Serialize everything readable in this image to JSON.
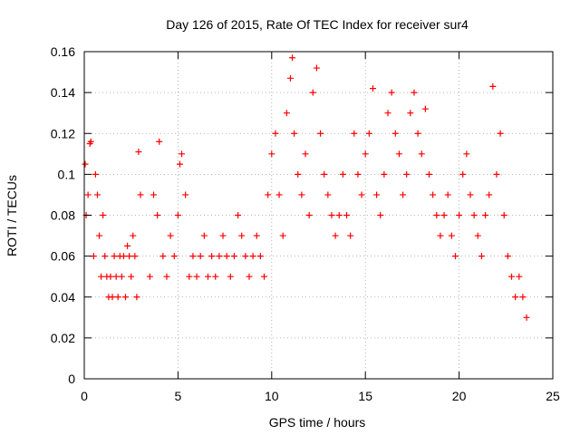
{
  "chart_data": {
    "type": "scatter",
    "title": "Day 126 of 2015, Rate Of TEC Index for receiver sur4",
    "xlabel": "GPS time / hours",
    "ylabel": "ROTI / TECUs",
    "xlim": [
      0,
      25
    ],
    "ylim": [
      0,
      0.16
    ],
    "xticks": [
      0,
      5,
      10,
      15,
      20,
      25
    ],
    "xtick_labels": [
      "0",
      "5",
      "10",
      "15",
      "20",
      "25"
    ],
    "yticks": [
      0,
      0.02,
      0.04,
      0.06,
      0.08,
      0.1,
      0.12,
      0.14,
      0.16
    ],
    "ytick_labels": [
      "0",
      "0.02",
      "0.04",
      "0.06",
      "0.08",
      "0.1",
      "0.12",
      "0.14",
      "0.16"
    ],
    "grid": true,
    "marker": "plus",
    "color": "#ff0000",
    "series": [
      {
        "values_note": "",
        "x": [
          0.05,
          0.1,
          0.2,
          0.3,
          0.35,
          0.5,
          0.6,
          0.7,
          0.8,
          0.9,
          1.0,
          1.1,
          1.2,
          1.3,
          1.4,
          1.5,
          1.6,
          1.7,
          1.8,
          1.9,
          2.0,
          2.1,
          2.2,
          2.3,
          2.4,
          2.5,
          2.6,
          2.7,
          2.8,
          2.9,
          3.0,
          3.5,
          3.7,
          3.9,
          4.0,
          4.2,
          4.4,
          4.6,
          4.8,
          5.0,
          5.1,
          5.2,
          5.4,
          5.6,
          5.8,
          6.0,
          6.2,
          6.4,
          6.6,
          6.8,
          7.0,
          7.2,
          7.4,
          7.6,
          7.8,
          8.0,
          8.2,
          8.4,
          8.6,
          8.8,
          9.0,
          9.2,
          9.4,
          9.6,
          9.8,
          10.0,
          10.2,
          10.4,
          10.6,
          10.8,
          11.0,
          11.1,
          11.2,
          11.4,
          11.6,
          11.8,
          12.0,
          12.2,
          12.4,
          12.6,
          12.8,
          13.0,
          13.2,
          13.4,
          13.6,
          13.8,
          14.0,
          14.2,
          14.4,
          14.6,
          14.8,
          15.0,
          15.2,
          15.4,
          15.6,
          15.8,
          16.0,
          16.2,
          16.4,
          16.6,
          16.8,
          17.0,
          17.2,
          17.4,
          17.6,
          17.8,
          18.0,
          18.2,
          18.4,
          18.6,
          18.8,
          19.0,
          19.2,
          19.4,
          19.6,
          19.8,
          20.0,
          20.2,
          20.4,
          20.6,
          20.8,
          21.0,
          21.2,
          21.4,
          21.6,
          21.8,
          22.0,
          22.2,
          22.4,
          22.6,
          22.8,
          23.0,
          23.2,
          23.4,
          23.6
        ],
        "y": [
          0.105,
          0.08,
          0.09,
          0.115,
          0.116,
          0.06,
          0.1,
          0.09,
          0.07,
          0.05,
          0.08,
          0.06,
          0.05,
          0.04,
          0.05,
          0.04,
          0.06,
          0.05,
          0.04,
          0.06,
          0.05,
          0.06,
          0.04,
          0.065,
          0.06,
          0.05,
          0.07,
          0.06,
          0.04,
          0.111,
          0.09,
          0.05,
          0.09,
          0.08,
          0.116,
          0.06,
          0.05,
          0.07,
          0.06,
          0.08,
          0.105,
          0.11,
          0.09,
          0.05,
          0.06,
          0.05,
          0.06,
          0.07,
          0.05,
          0.06,
          0.05,
          0.06,
          0.07,
          0.06,
          0.05,
          0.06,
          0.08,
          0.07,
          0.06,
          0.05,
          0.06,
          0.07,
          0.06,
          0.05,
          0.09,
          0.11,
          0.12,
          0.09,
          0.07,
          0.13,
          0.147,
          0.157,
          0.12,
          0.1,
          0.09,
          0.11,
          0.08,
          0.14,
          0.152,
          0.12,
          0.1,
          0.09,
          0.08,
          0.07,
          0.08,
          0.1,
          0.08,
          0.07,
          0.12,
          0.1,
          0.09,
          0.11,
          0.12,
          0.142,
          0.09,
          0.08,
          0.1,
          0.13,
          0.14,
          0.12,
          0.11,
          0.09,
          0.1,
          0.13,
          0.14,
          0.12,
          0.11,
          0.132,
          0.1,
          0.09,
          0.08,
          0.07,
          0.08,
          0.09,
          0.07,
          0.06,
          0.08,
          0.1,
          0.11,
          0.09,
          0.08,
          0.07,
          0.06,
          0.08,
          0.09,
          0.143,
          0.1,
          0.12,
          0.08,
          0.06,
          0.05,
          0.04,
          0.05,
          0.04,
          0.03
        ]
      }
    ]
  }
}
